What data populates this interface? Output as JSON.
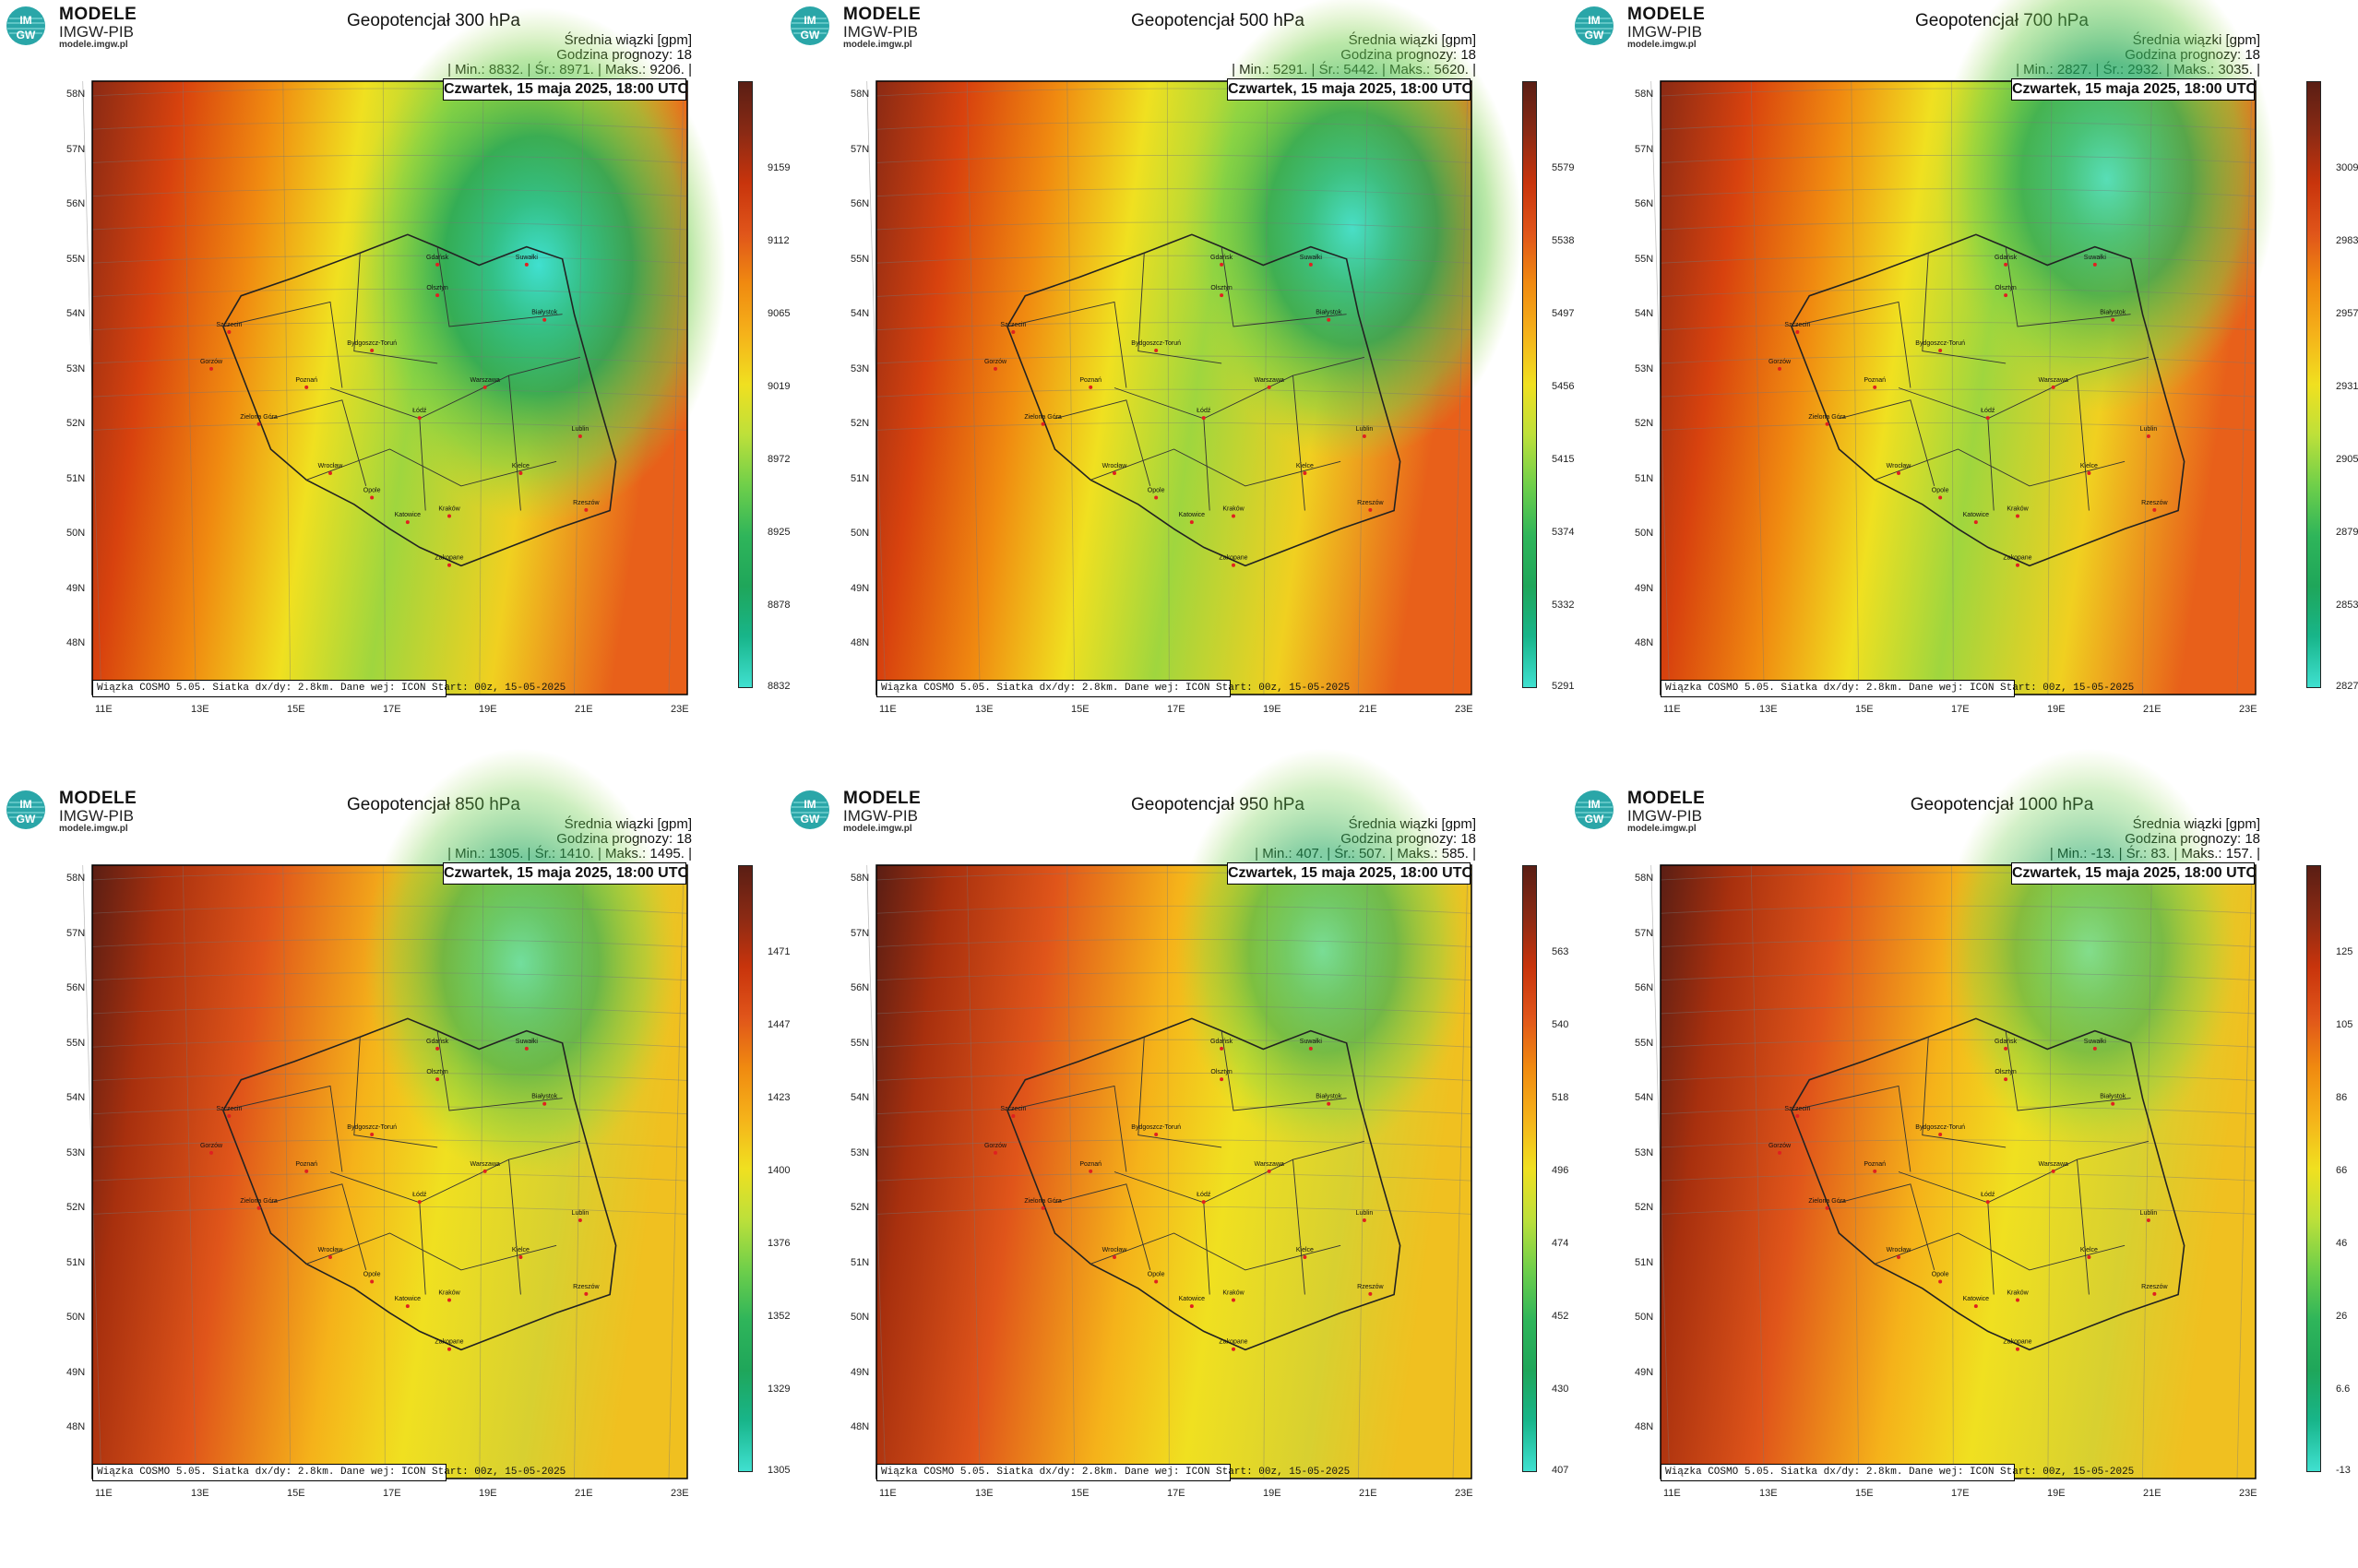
{
  "brand": {
    "line1": "MODELE",
    "line2": "IMGW-PIB",
    "line3": "modele.imgw.pl",
    "logo_top": "IM",
    "logo_bottom": "GW"
  },
  "info_header": "Średnia wiązki [gpm]",
  "forecast_hour": "Godzina prognozy: 18",
  "date_label": "Czwartek, 15 maja 2025, 18:00 UTC",
  "footer": "Wiązka COSMO 5.05. Siatka dx/dy: 2.8km. Dane wej: ICON Start: 00z, 15-05-2025",
  "lat_labels": [
    "58N",
    "57N",
    "56N",
    "55N",
    "54N",
    "53N",
    "52N",
    "51N",
    "50N",
    "49N",
    "48N"
  ],
  "lon_labels": [
    "11E",
    "13E",
    "15E",
    "17E",
    "19E",
    "21E",
    "23E"
  ],
  "cities": [
    "Gdańsk",
    "Olsztyn",
    "Suwałki",
    "Białystok",
    "Szczecin",
    "Bydgoszcz-Toruń",
    "Gorzów",
    "Poznań",
    "Warszawa",
    "Zielona Góra",
    "Łódź",
    "Lublin",
    "Wrocław",
    "Kielce",
    "Opole",
    "Katowice",
    "Kraków",
    "Rzeszów",
    "Zakopane"
  ],
  "colors": {
    "low": "#40e0d0",
    "mid_green": "#1fa65a",
    "yellow": "#f0e020",
    "orange": "#f08a10",
    "red": "#c8340c",
    "dark": "#5a1e14"
  },
  "panels": [
    {
      "title": "Geopotencjał 300 hPa",
      "stats": "| Min.:   8832. | Śr.:   8971. | Maks.:   9206. |",
      "min": 8832,
      "mean": 8971,
      "max": 9206,
      "colorbar": [
        "9159",
        "9112",
        "9065",
        "9019",
        "8972",
        "8925",
        "8878",
        "8832"
      ],
      "low_center": [
        0.75,
        0.3
      ],
      "low_strength": 1.0,
      "low_radius": 0.42
    },
    {
      "title": "Geopotencjał 500 hPa",
      "stats": "| Min.:   5291. | Śr.:   5442. | Maks.:   5620. |",
      "min": 5291,
      "mean": 5442,
      "max": 5620,
      "colorbar": [
        "5579",
        "5538",
        "5497",
        "5456",
        "5415",
        "5374",
        "5332",
        "5291"
      ],
      "low_center": [
        0.8,
        0.24
      ],
      "low_strength": 0.95,
      "low_radius": 0.38
    },
    {
      "title": "Geopotencjał 700 hPa",
      "stats": "| Min.:   2827. | Śr.:   2932. | Maks.:   3035. |",
      "min": 2827,
      "mean": 2932,
      "max": 3035,
      "colorbar": [
        "3009",
        "2983",
        "2957",
        "2931",
        "2905",
        "2879",
        "2853",
        "2827"
      ],
      "low_center": [
        0.75,
        0.16
      ],
      "low_strength": 0.85,
      "low_radius": 0.38
    },
    {
      "title": "Geopotencjał 850 hPa",
      "stats": "| Min.:   1305. | Śr.:   1410. | Maks.:   1495. |",
      "min": 1305,
      "mean": 1410,
      "max": 1495,
      "colorbar": [
        "1471",
        "1447",
        "1423",
        "1400",
        "1376",
        "1352",
        "1329",
        "1305"
      ],
      "low_center": [
        0.72,
        0.16
      ],
      "low_strength": 0.7,
      "low_radius": 0.35
    },
    {
      "title": "Geopotencjał 950 hPa",
      "stats": "| Min.:   407. | Śr.:   507. | Maks.:   585. |",
      "min": 407,
      "mean": 507,
      "max": 585,
      "colorbar": [
        "563",
        "540",
        "518",
        "496",
        "474",
        "452",
        "430",
        "407"
      ],
      "low_center": [
        0.75,
        0.14
      ],
      "low_strength": 0.65,
      "low_radius": 0.33
    },
    {
      "title": "Geopotencjał 1000 hPa",
      "stats": "| Min.:   -13. | Śr.:   83. | Maks.:   157. |",
      "min": -13,
      "mean": 83,
      "max": 157,
      "colorbar": [
        "125",
        "105",
        "86",
        "66",
        "46",
        "26",
        "6.6",
        "-13"
      ],
      "low_center": [
        0.72,
        0.14
      ],
      "low_strength": 0.6,
      "low_radius": 0.33
    }
  ]
}
